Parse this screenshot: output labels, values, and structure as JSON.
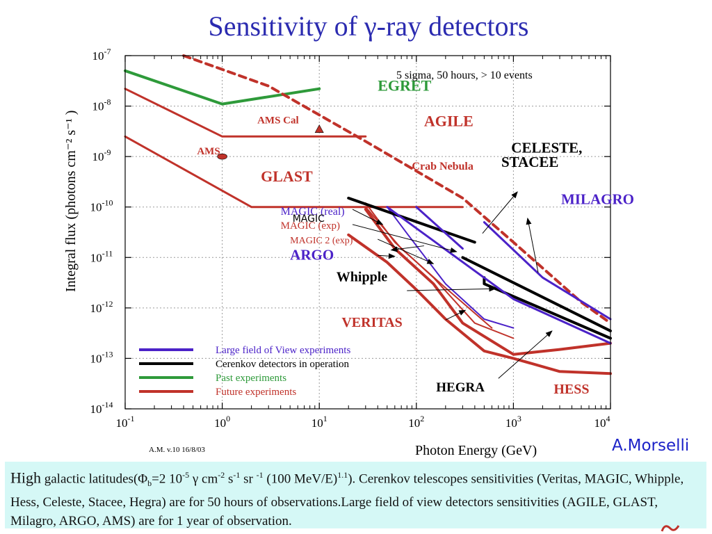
{
  "title": "Sensitivity of γ-ray detectors",
  "author": "A.Morselli",
  "version_note": "A.M. v.10 16/8/03",
  "caption": {
    "lead": "High",
    "part1": " galactic latitudes(Φ",
    "sub_b": "b",
    "part2": "=2 10",
    "sup1": "-5",
    "part3": " γ cm",
    "sup2": "-2",
    "part4": " s",
    "sup3": "-1",
    "part5": " sr ",
    "sup4": "-1",
    "part6": " (100 MeV/E)",
    "sup5": "1.1",
    "part7": "). Cerenkov telescopes sensitivities (Veritas, MAGIC, Whipple, Hess, Celeste, Stacee, Hegra) are for 50 hours of observations.Large field of view detectors sensitivities (AGILE, GLAST, Milagro, ARGO, AMS) are for 1 year of observation."
  },
  "colors": {
    "future": "#c0322a",
    "operation": "#000000",
    "past": "#2e9a3a",
    "lfov": "#4b22c8",
    "title": "#2b2bb0"
  },
  "chart_data": {
    "type": "line",
    "log_x": true,
    "log_y": true,
    "xlim": [
      0.1,
      10000
    ],
    "ylim": [
      1e-14,
      1e-07
    ],
    "grid": true,
    "xlabel": "Photon Energy (GeV)",
    "ylabel": "Integral flux (photons cm⁻² s⁻¹ )",
    "x_tick_labels": [
      {
        "base": "10",
        "exp": "-1",
        "value": 0.1
      },
      {
        "base": "10",
        "exp": "0",
        "value": 1
      },
      {
        "base": "10",
        "exp": "1",
        "value": 10
      },
      {
        "base": "10",
        "exp": "2",
        "value": 100
      },
      {
        "base": "10",
        "exp": "3",
        "value": 1000
      },
      {
        "base": "10",
        "exp": "4",
        "value": 10000
      }
    ],
    "y_tick_labels": [
      {
        "base": "10",
        "exp": "-7",
        "value": 1e-07
      },
      {
        "base": "10",
        "exp": "-8",
        "value": 1e-08
      },
      {
        "base": "10",
        "exp": "-9",
        "value": 1e-09
      },
      {
        "base": "10",
        "exp": "-10",
        "value": 1e-10
      },
      {
        "base": "10",
        "exp": "-11",
        "value": 1e-11
      },
      {
        "base": "10",
        "exp": "-12",
        "value": 1e-12
      },
      {
        "base": "10",
        "exp": "-13",
        "value": 1e-13
      },
      {
        "base": "10",
        "exp": "-14",
        "value": 1e-14
      }
    ],
    "condition_note": "5 sigma, 50 hours,  > 10 events",
    "series": [
      {
        "name": "EGRET",
        "color": "past",
        "width": 4,
        "points": [
          [
            0.1,
            5e-08
          ],
          [
            1,
            1.1e-08
          ],
          [
            10,
            2.2e-08
          ]
        ]
      },
      {
        "name": "AGILE",
        "color": "future",
        "width": 3,
        "points": [
          [
            0.1,
            2.2e-08
          ],
          [
            1,
            2.5e-09
          ],
          [
            30,
            2.5e-09
          ]
        ]
      },
      {
        "name": "GLAST",
        "color": "future",
        "width": 3,
        "points": [
          [
            0.1,
            2.5e-09
          ],
          [
            2,
            1e-10
          ],
          [
            300,
            1e-10
          ]
        ]
      },
      {
        "name": "Crab Nebula",
        "color": "future",
        "width": 4,
        "dashed": true,
        "points": [
          [
            0.4,
            1e-07
          ],
          [
            3,
            2.5e-08
          ],
          [
            30,
            2e-09
          ],
          [
            300,
            1.5e-10
          ],
          [
            1000,
            2e-11
          ],
          [
            5000,
            1.3e-12
          ],
          [
            10000,
            5e-13
          ]
        ]
      },
      {
        "name": "HESS",
        "color": "future",
        "width": 4,
        "points": [
          [
            20,
            2.8e-11
          ],
          [
            50,
            8e-12
          ],
          [
            100,
            2.3e-12
          ],
          [
            200,
            6e-13
          ],
          [
            500,
            1.4e-13
          ],
          [
            1000,
            1e-13
          ],
          [
            3000,
            5.5e-14
          ],
          [
            10000,
            5e-14
          ]
        ]
      },
      {
        "name": "VERITAS",
        "color": "future",
        "width": 4,
        "points": [
          [
            30,
            9e-11
          ],
          [
            60,
            1.5e-11
          ],
          [
            150,
            3e-12
          ],
          [
            300,
            5e-13
          ],
          [
            1000,
            1.2e-13
          ],
          [
            3000,
            1.5e-13
          ],
          [
            10000,
            2e-13
          ]
        ]
      },
      {
        "name": "MAGIC 2 (exp)",
        "color": "future",
        "width": 2,
        "points": [
          [
            30,
            1.2e-10
          ],
          [
            60,
            2e-11
          ],
          [
            150,
            4e-12
          ],
          [
            400,
            5e-13
          ],
          [
            1000,
            2.5e-13
          ]
        ]
      },
      {
        "name": "MAGIC (exp)",
        "color": "future",
        "width": 2,
        "points": [
          [
            30,
            1e-10
          ],
          [
            70,
            1.5e-11
          ],
          [
            200,
            2.5e-12
          ],
          [
            600,
            4e-13
          ]
        ]
      },
      {
        "name": "MAGIC (real)",
        "color": "lfov",
        "width": 2,
        "points": [
          [
            50,
            1e-10
          ],
          [
            80,
            3e-11
          ],
          [
            200,
            3e-12
          ],
          [
            500,
            6e-13
          ],
          [
            1000,
            4e-13
          ]
        ]
      },
      {
        "name": "Whipple",
        "color": "operation",
        "width": 4,
        "points": [
          [
            20,
            1.5e-10
          ],
          [
            400,
            2e-11
          ]
        ]
      },
      {
        "name": "CELESTE, STACEE",
        "color": "operation",
        "width": 4,
        "points": [
          [
            300,
            1e-11
          ],
          [
            10000,
            3.5e-13
          ]
        ]
      },
      {
        "name": "HEGRA",
        "color": "operation",
        "width": 4,
        "points": [
          [
            500,
            4e-12
          ],
          [
            500,
            3e-12
          ],
          [
            10000,
            2.5e-13
          ]
        ]
      },
      {
        "name": "ARGO",
        "color": "lfov",
        "width": 3,
        "points": [
          [
            100,
            1e-10
          ],
          [
            300,
            1.5e-11
          ]
        ]
      },
      {
        "name": "MILAGRO",
        "color": "lfov",
        "width": 3,
        "points": [
          [
            500,
            5e-11
          ],
          [
            2000,
            4e-12
          ],
          [
            10000,
            6e-13
          ]
        ]
      },
      {
        "name": "Large field of View experiments (lower)",
        "color": "lfov",
        "width": 3,
        "points": [
          [
            50,
            1e-10
          ],
          [
            1000,
            1.5e-12
          ],
          [
            10000,
            2e-13
          ]
        ]
      }
    ],
    "markers": [
      {
        "label": "AMS Cal",
        "shape": "triangle",
        "x": 10,
        "y": 3.5e-09
      },
      {
        "label": "AMS",
        "shape": "ellipse",
        "x": 1,
        "y": 1e-09
      }
    ],
    "labels": [
      {
        "text": "EGRET",
        "x": 40,
        "y": 2e-08,
        "color": "past",
        "size": 22,
        "bold": true
      },
      {
        "text": "AGILE",
        "x": 120,
        "y": 4e-09,
        "color": "future",
        "size": 22,
        "bold": true
      },
      {
        "text": "AMS Cal",
        "x": 2.3,
        "y": 4.5e-09,
        "color": "future",
        "size": 15,
        "bold": true
      },
      {
        "text": "AMS",
        "x": 0.55,
        "y": 1.1e-09,
        "color": "future",
        "size": 15,
        "bold": true
      },
      {
        "text": "Crab Nebula",
        "x": 90,
        "y": 5.5e-10,
        "color": "future",
        "size": 16,
        "bold": true
      },
      {
        "text": "GLAST",
        "x": 2.5,
        "y": 3.2e-10,
        "color": "future",
        "size": 22,
        "bold": true
      },
      {
        "text": "CELESTE,",
        "x": 950,
        "y": 1.2e-09,
        "color": "operation",
        "size": 21,
        "bold": true
      },
      {
        "text": "STACEE",
        "x": 750,
        "y": 6.2e-10,
        "color": "operation",
        "size": 21,
        "bold": true
      },
      {
        "text": "MILAGRO",
        "x": 3100,
        "y": 1.15e-10,
        "color": "lfov",
        "size": 21,
        "bold": true
      },
      {
        "text": "MAGIC (real)",
        "x": 4,
        "y": 7e-11,
        "color": "lfov",
        "size": 16,
        "bold": false
      },
      {
        "text": "MAGIC",
        "x": 5.3,
        "y": 5.1e-11,
        "color": "operation",
        "size": 14,
        "bold": false,
        "sans": true
      },
      {
        "text": "MAGIC (exp)",
        "x": 4,
        "y": 3.7e-11,
        "color": "future",
        "size": 15,
        "bold": false
      },
      {
        "text": "MAGIC 2 (exp)",
        "x": 5,
        "y": 1.9e-11,
        "color": "future",
        "size": 14,
        "bold": false
      },
      {
        "text": "ARGO",
        "x": 5,
        "y": 9e-12,
        "color": "lfov",
        "size": 21,
        "bold": true
      },
      {
        "text": "Whipple",
        "x": 15,
        "y": 3.4e-12,
        "color": "operation",
        "size": 20,
        "bold": true
      },
      {
        "text": "VERITAS",
        "x": 17,
        "y": 4.2e-13,
        "color": "future",
        "size": 20,
        "bold": true
      },
      {
        "text": "HEGRA",
        "x": 160,
        "y": 2.2e-14,
        "color": "operation",
        "size": 19,
        "bold": true
      },
      {
        "text": "HESS",
        "x": 2600,
        "y": 2e-14,
        "color": "future",
        "size": 20,
        "bold": true
      }
    ],
    "arrows": [
      {
        "from": [
          480,
          3e-11
        ],
        "to": [
          1100,
          2e-10
        ]
      },
      {
        "from": [
          1800,
          5e-12
        ],
        "to": [
          1400,
          6e-11
        ]
      },
      {
        "from": [
          22,
          9e-11
        ],
        "to": [
          45,
          4.5e-11
        ]
      },
      {
        "from": [
          22,
          4.5e-11
        ],
        "to": [
          260,
          1.3e-11
        ]
      },
      {
        "from": [
          40,
          2.3e-11
        ],
        "to": [
          150,
          7.5e-12
        ]
      },
      {
        "from": [
          120,
          1.7e-11
        ],
        "to": [
          55,
          1.4e-11
        ]
      },
      {
        "from": [
          80,
          2.2e-12
        ],
        "to": [
          650,
          2.4e-12
        ]
      },
      {
        "from": [
          200,
          5.8e-13
        ],
        "to": [
          320,
          9e-13
        ]
      },
      {
        "from": [
          700,
          4e-14
        ],
        "to": [
          2500,
          3.5e-13
        ]
      },
      {
        "from": [
          40,
          1.1e-11
        ],
        "to": [
          60,
          1.05e-11
        ]
      }
    ],
    "legend": {
      "position": "bottom-left",
      "entries": [
        {
          "label": "Large field of View experiments",
          "color": "lfov"
        },
        {
          "label": "Cerenkov detectors in operation",
          "color": "operation"
        },
        {
          "label": "Past experiments",
          "color": "past"
        },
        {
          "label": "Future experiments",
          "color": "future"
        }
      ]
    }
  }
}
